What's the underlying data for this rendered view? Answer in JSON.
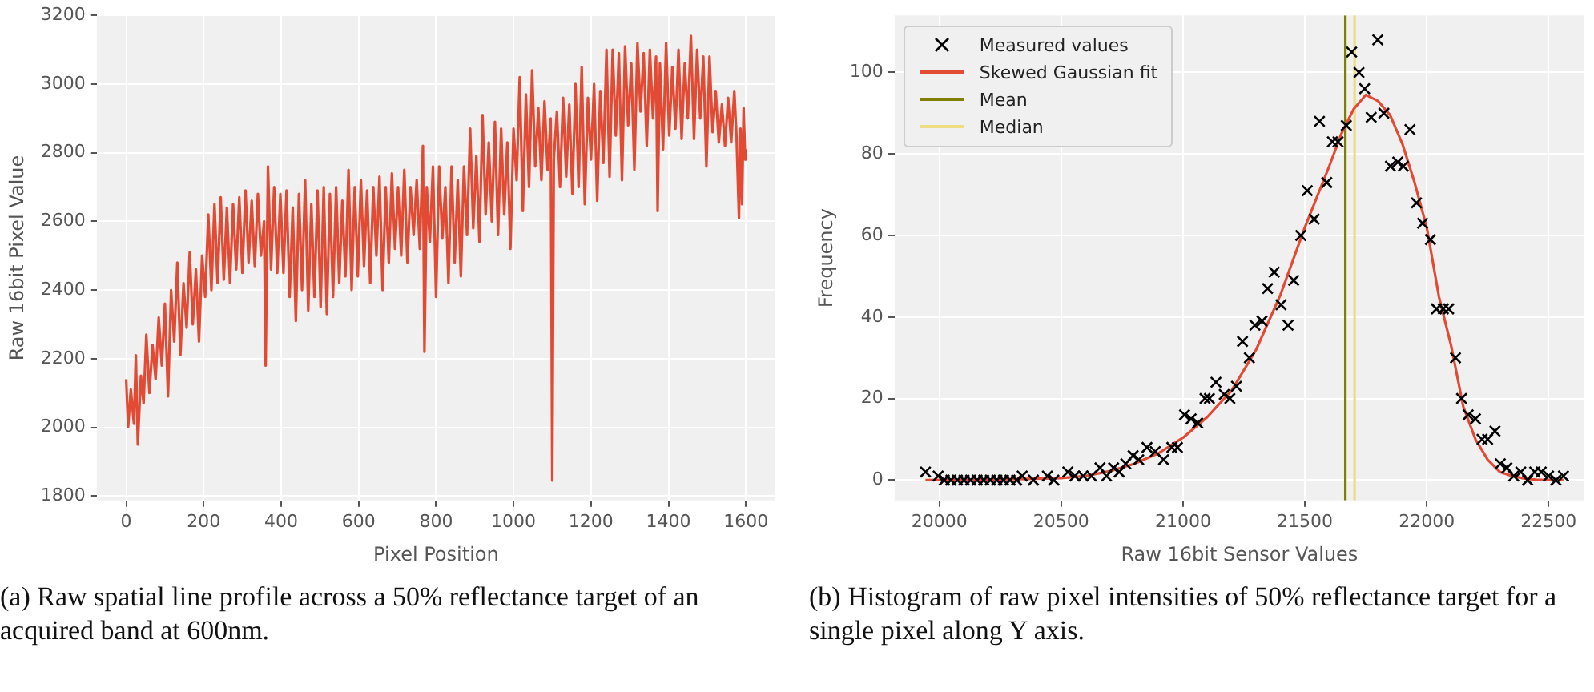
{
  "chart_data": [
    {
      "type": "line",
      "xlabel": "Pixel Position",
      "ylabel": "Raw 16bit Pixel Value",
      "xlim": [
        -76,
        1676
      ],
      "ylim": [
        1787,
        3200
      ],
      "xticks": [
        0,
        200,
        400,
        600,
        800,
        1000,
        1200,
        1400,
        1600
      ],
      "yticks": [
        1800,
        2000,
        2200,
        2400,
        2600,
        2800,
        3000,
        3200
      ],
      "grid": true,
      "legend": false,
      "marker": "none",
      "line_style": "solid",
      "annotations": [
        "(a) Raw spatial line profile across a 50% reflectance target of an acquired band at 600nm."
      ],
      "series": [
        {
          "color": "#e24a33",
          "x": [
            0,
            5,
            12,
            20,
            25,
            30,
            38,
            45,
            52,
            60,
            68,
            76,
            84,
            92,
            100,
            108,
            116,
            124,
            132,
            140,
            148,
            156,
            164,
            172,
            180,
            188,
            196,
            204,
            212,
            220,
            228,
            236,
            244,
            252,
            260,
            268,
            276,
            284,
            292,
            300,
            308,
            316,
            324,
            332,
            340,
            348,
            356,
            360,
            366,
            374,
            382,
            390,
            398,
            406,
            414,
            422,
            430,
            438,
            446,
            454,
            462,
            470,
            478,
            486,
            494,
            502,
            510,
            518,
            526,
            534,
            542,
            550,
            558,
            566,
            574,
            582,
            590,
            598,
            606,
            614,
            622,
            630,
            638,
            646,
            654,
            662,
            670,
            678,
            686,
            694,
            702,
            710,
            718,
            726,
            734,
            742,
            750,
            758,
            766,
            770,
            776,
            784,
            792,
            800,
            808,
            816,
            824,
            832,
            840,
            848,
            856,
            864,
            872,
            880,
            888,
            896,
            904,
            912,
            920,
            928,
            936,
            944,
            952,
            960,
            968,
            976,
            984,
            992,
            1000,
            1008,
            1016,
            1024,
            1032,
            1040,
            1048,
            1056,
            1064,
            1072,
            1080,
            1088,
            1096,
            1100,
            1104,
            1112,
            1120,
            1128,
            1136,
            1144,
            1152,
            1160,
            1168,
            1176,
            1184,
            1192,
            1200,
            1208,
            1216,
            1224,
            1232,
            1240,
            1248,
            1256,
            1264,
            1272,
            1280,
            1288,
            1296,
            1304,
            1312,
            1320,
            1328,
            1336,
            1344,
            1352,
            1360,
            1368,
            1372,
            1378,
            1386,
            1394,
            1402,
            1410,
            1418,
            1426,
            1434,
            1442,
            1450,
            1458,
            1466,
            1474,
            1482,
            1490,
            1498,
            1506,
            1514,
            1522,
            1530,
            1538,
            1546,
            1554,
            1562,
            1570,
            1576,
            1582,
            1586,
            1590,
            1594,
            1598,
            1600
          ],
          "values": [
            2140,
            2000,
            2110,
            2010,
            2210,
            1950,
            2150,
            2070,
            2270,
            2100,
            2240,
            2140,
            2320,
            2180,
            2360,
            2090,
            2400,
            2250,
            2480,
            2210,
            2420,
            2290,
            2510,
            2300,
            2460,
            2250,
            2500,
            2380,
            2620,
            2400,
            2650,
            2420,
            2670,
            2430,
            2640,
            2420,
            2650,
            2460,
            2670,
            2450,
            2690,
            2480,
            2660,
            2470,
            2680,
            2500,
            2600,
            2180,
            2760,
            2460,
            2700,
            2450,
            2680,
            2450,
            2690,
            2380,
            2640,
            2310,
            2680,
            2400,
            2720,
            2340,
            2650,
            2380,
            2690,
            2350,
            2700,
            2330,
            2680,
            2380,
            2700,
            2420,
            2660,
            2440,
            2750,
            2400,
            2700,
            2440,
            2720,
            2470,
            2690,
            2420,
            2700,
            2500,
            2730,
            2400,
            2700,
            2480,
            2740,
            2520,
            2700,
            2500,
            2750,
            2480,
            2700,
            2560,
            2720,
            2520,
            2820,
            2220,
            2700,
            2540,
            2760,
            2380,
            2760,
            2550,
            2700,
            2420,
            2760,
            2480,
            2720,
            2440,
            2760,
            2560,
            2870,
            2580,
            2790,
            2540,
            2910,
            2620,
            2830,
            2600,
            2890,
            2560,
            2870,
            2620,
            2830,
            2520,
            2870,
            2720,
            3020,
            2630,
            2970,
            2700,
            3040,
            2760,
            2930,
            2720,
            2950,
            2750,
            2900,
            1845,
            2780,
            2920,
            2700,
            2960,
            2730,
            2940,
            2680,
            3000,
            2700,
            3050,
            2650,
            2960,
            2780,
            3000,
            2660,
            2980,
            2770,
            3100,
            2730,
            3100,
            2850,
            3090,
            2720,
            3110,
            2880,
            3060,
            2750,
            3120,
            2920,
            3090,
            2820,
            3100,
            2900,
            3080,
            2630,
            3060,
            2810,
            3120,
            2850,
            3050,
            2870,
            3100,
            2840,
            3060,
            2900,
            3140,
            2840,
            3100,
            2900,
            3080,
            2760,
            3080,
            2860,
            2980,
            2830,
            2940,
            2820,
            2960,
            2830,
            2980,
            2840,
            2610,
            2870,
            2650,
            2930,
            2780,
            2810
          ]
        }
      ]
    },
    {
      "type": "scatter",
      "xlabel": "Raw 16bit Sensor Values",
      "ylabel": "Frequency",
      "xlim": [
        19816,
        22647
      ],
      "ylim": [
        -5,
        114
      ],
      "xticks": [
        20000,
        20500,
        21000,
        21500,
        22000,
        22500
      ],
      "yticks": [
        0,
        20,
        40,
        60,
        80,
        100
      ],
      "grid": true,
      "legend": "top left",
      "annotations": [
        "(b) Histogram of raw pixel intensities of 50% reflectance target for a single pixel along Y axis."
      ],
      "series": [
        {
          "name": "Measured values",
          "type": "scatter",
          "marker": "cross",
          "color": "#000000",
          "x": [
            19943,
            19995,
            20020,
            20047,
            20074,
            20101,
            20128,
            20155,
            20182,
            20209,
            20236,
            20263,
            20290,
            20317,
            20340,
            20386,
            20443,
            20470,
            20527,
            20556,
            20590,
            20624,
            20659,
            20686,
            20715,
            20738,
            20765,
            20795,
            20818,
            20852,
            20886,
            20920,
            20954,
            20977,
            21006,
            21033,
            21060,
            21090,
            21108,
            21135,
            21169,
            21192,
            21219,
            21244,
            21272,
            21295,
            21324,
            21347,
            21374,
            21402,
            21431,
            21454,
            21483,
            21510,
            21538,
            21560,
            21590,
            21613,
            21636,
            21670,
            21692,
            21722,
            21745,
            21772,
            21799,
            21824,
            21851,
            21881,
            21904,
            21931,
            21958,
            21983,
            22015,
            22040,
            22068,
            22090,
            22118,
            22143,
            22170,
            22200,
            22227,
            22250,
            22280,
            22302,
            22329,
            22357,
            22386,
            22414,
            22443,
            22470,
            22500,
            22530,
            22561
          ],
          "values": [
            2,
            1,
            0,
            0,
            0,
            0,
            0,
            0,
            0,
            0,
            0,
            0,
            0,
            0,
            1,
            0,
            1,
            0,
            2,
            1,
            1,
            1,
            3,
            1,
            3,
            2,
            4,
            6,
            5,
            8,
            7,
            5,
            8,
            8,
            16,
            15,
            14,
            20,
            20,
            24,
            21,
            20,
            23,
            34,
            30,
            38,
            39,
            47,
            51,
            43,
            38,
            49,
            60,
            71,
            64,
            88,
            73,
            83,
            83,
            87,
            105,
            100,
            96,
            89,
            108,
            90,
            77,
            78,
            77,
            86,
            68,
            63,
            59,
            42,
            42,
            42,
            30,
            20,
            16,
            15,
            10,
            10,
            12,
            4,
            3,
            1,
            2,
            0,
            2,
            2,
            1,
            0,
            1
          ]
        },
        {
          "name": "Skewed Gaussian fit",
          "type": "line",
          "marker": "none",
          "line_style": "solid",
          "color": "#e24a33",
          "x": [
            19943,
            20200,
            20500,
            20600,
            20700,
            20800,
            20900,
            21000,
            21100,
            21200,
            21300,
            21400,
            21500,
            21600,
            21650,
            21700,
            21750,
            21800,
            21850,
            21900,
            21950,
            22000,
            22050,
            22100,
            22150,
            22200,
            22250,
            22300,
            22350,
            22400,
            22450,
            22561
          ],
          "values": [
            0,
            0.1,
            0.5,
            1,
            2.2,
            4,
            6.6,
            10.4,
            15.5,
            22,
            32,
            45.5,
            62,
            77,
            85,
            91,
            94.5,
            93,
            89.5,
            82.5,
            73,
            62,
            45,
            33,
            18,
            10,
            5,
            2,
            1,
            0.4,
            0.1,
            0
          ]
        },
        {
          "name": "Mean",
          "type": "line",
          "marker": "none",
          "line_style": "solid",
          "color": "#808000",
          "x": [
            21666,
            21666
          ],
          "values": [
            -5,
            114
          ]
        },
        {
          "name": "Median",
          "type": "line",
          "marker": "none",
          "line_style": "solid",
          "color": "#eedc82",
          "x": [
            21704,
            21704
          ],
          "values": [
            -5,
            114
          ]
        }
      ]
    }
  ]
}
